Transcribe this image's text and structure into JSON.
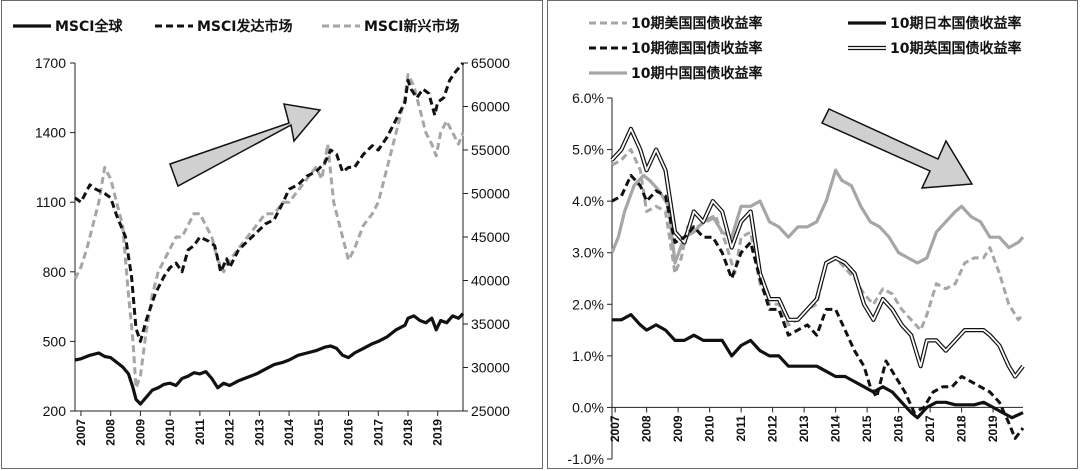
{
  "chart_data": [
    {
      "type": "line",
      "title": "",
      "xlabel": "",
      "ylabel": "",
      "x_ticks": [
        "2007",
        "2008",
        "2009",
        "2010",
        "2011",
        "2012",
        "2013",
        "2014",
        "2015",
        "2016",
        "2017",
        "2018",
        "2019"
      ],
      "x_range": [
        2006.8,
        2019.85
      ],
      "y_left_ticks": [
        "200",
        "500",
        "800",
        "1100",
        "1400",
        "1700"
      ],
      "y_left_range": [
        200,
        1700
      ],
      "y_right_ticks": [
        "25000",
        "30000",
        "35000",
        "40000",
        "45000",
        "50000",
        "55000",
        "60000",
        "65000"
      ],
      "y_right_range": [
        25000,
        65000
      ],
      "grid": false,
      "legend_position": "top",
      "arrow": "up-right",
      "series": [
        {
          "name": "MSCI全球",
          "axis": "left",
          "style": "solid-black",
          "x": [
            2006.8,
            2007.0,
            2007.3,
            2007.6,
            2007.8,
            2008.0,
            2008.2,
            2008.4,
            2008.6,
            2008.75,
            2008.85,
            2009.0,
            2009.2,
            2009.4,
            2009.6,
            2009.8,
            2010.0,
            2010.2,
            2010.4,
            2010.6,
            2010.8,
            2011.0,
            2011.2,
            2011.4,
            2011.6,
            2011.8,
            2012.0,
            2012.3,
            2012.6,
            2012.9,
            2013.2,
            2013.5,
            2013.8,
            2014.0,
            2014.3,
            2014.6,
            2014.9,
            2015.2,
            2015.4,
            2015.6,
            2015.8,
            2016.0,
            2016.2,
            2016.5,
            2016.8,
            2017.0,
            2017.3,
            2017.6,
            2017.9,
            2018.0,
            2018.2,
            2018.4,
            2018.6,
            2018.8,
            2018.95,
            2019.1,
            2019.3,
            2019.5,
            2019.7,
            2019.85
          ],
          "y": [
            420,
            425,
            440,
            450,
            435,
            430,
            410,
            390,
            360,
            300,
            250,
            230,
            260,
            290,
            300,
            315,
            320,
            310,
            340,
            350,
            365,
            360,
            370,
            340,
            300,
            320,
            310,
            330,
            345,
            360,
            380,
            400,
            410,
            420,
            440,
            450,
            460,
            475,
            480,
            470,
            440,
            430,
            450,
            470,
            490,
            500,
            520,
            550,
            570,
            600,
            610,
            590,
            580,
            600,
            550,
            590,
            580,
            610,
            600,
            620
          ]
        },
        {
          "name": "MSCI发达市场",
          "axis": "right",
          "style": "dashed-black",
          "x": [
            2006.8,
            2007.0,
            2007.3,
            2007.5,
            2007.8,
            2008.0,
            2008.2,
            2008.5,
            2008.7,
            2008.85,
            2009.0,
            2009.2,
            2009.5,
            2009.8,
            2010.0,
            2010.2,
            2010.4,
            2010.6,
            2010.8,
            2011.0,
            2011.3,
            2011.5,
            2011.7,
            2011.9,
            2012.0,
            2012.3,
            2012.6,
            2012.9,
            2013.2,
            2013.5,
            2013.8,
            2014.0,
            2014.3,
            2014.6,
            2014.9,
            2015.2,
            2015.4,
            2015.6,
            2015.8,
            2016.0,
            2016.2,
            2016.5,
            2016.8,
            2017.0,
            2017.3,
            2017.6,
            2017.9,
            2018.0,
            2018.1,
            2018.3,
            2018.5,
            2018.7,
            2018.9,
            2019.0,
            2019.2,
            2019.4,
            2019.6,
            2019.85
          ],
          "y": [
            49500,
            49000,
            51000,
            50500,
            50000,
            49500,
            47500,
            45000,
            40500,
            34500,
            33000,
            35500,
            38500,
            40500,
            41500,
            42000,
            41000,
            43500,
            44000,
            45000,
            44500,
            44000,
            41000,
            42500,
            41500,
            43500,
            44500,
            45500,
            46500,
            47000,
            49000,
            50500,
            51000,
            52000,
            52500,
            53500,
            55000,
            54500,
            52500,
            53000,
            53000,
            54500,
            55500,
            55000,
            56500,
            58500,
            60500,
            63000,
            62000,
            61000,
            62000,
            61500,
            59000,
            60500,
            61000,
            63000,
            64000,
            65000
          ]
        },
        {
          "name": "MSCI新兴市场",
          "axis": "left",
          "style": "dashed-gray",
          "x": [
            2006.8,
            2007.0,
            2007.2,
            2007.4,
            2007.6,
            2007.8,
            2008.0,
            2008.2,
            2008.4,
            2008.6,
            2008.75,
            2008.85,
            2009.0,
            2009.2,
            2009.4,
            2009.6,
            2009.8,
            2010.0,
            2010.2,
            2010.4,
            2010.6,
            2010.8,
            2011.0,
            2011.2,
            2011.4,
            2011.6,
            2011.8,
            2012.0,
            2012.3,
            2012.6,
            2012.9,
            2013.2,
            2013.5,
            2013.8,
            2014.0,
            2014.3,
            2014.6,
            2014.9,
            2015.1,
            2015.3,
            2015.5,
            2015.7,
            2015.9,
            2016.0,
            2016.2,
            2016.5,
            2016.8,
            2017.0,
            2017.3,
            2017.6,
            2017.9,
            2018.0,
            2018.2,
            2018.4,
            2018.6,
            2018.8,
            2018.95,
            2019.1,
            2019.3,
            2019.5,
            2019.7,
            2019.85
          ],
          "y": [
            770,
            820,
            900,
            1000,
            1100,
            1250,
            1200,
            1100,
            1000,
            700,
            500,
            300,
            350,
            550,
            700,
            800,
            850,
            900,
            950,
            950,
            1000,
            1050,
            1050,
            1000,
            950,
            850,
            800,
            850,
            900,
            950,
            1000,
            1050,
            1050,
            1100,
            1100,
            1150,
            1200,
            1250,
            1200,
            1350,
            1100,
            1000,
            900,
            850,
            900,
            1000,
            1050,
            1100,
            1250,
            1400,
            1550,
            1650,
            1600,
            1500,
            1400,
            1350,
            1300,
            1400,
            1450,
            1400,
            1350,
            1400
          ]
        }
      ]
    },
    {
      "type": "line",
      "title": "",
      "xlabel": "",
      "ylabel": "",
      "x_ticks": [
        "2007",
        "2008",
        "2009",
        "2010",
        "2011",
        "2012",
        "2013",
        "2014",
        "2015",
        "2016",
        "2017",
        "2018",
        "2019"
      ],
      "x_range": [
        2006.9,
        2019.95
      ],
      "y_ticks": [
        "-1.0%",
        "0.0%",
        "1.0%",
        "2.0%",
        "3.0%",
        "4.0%",
        "5.0%",
        "6.0%"
      ],
      "y_range": [
        -1.0,
        6.0
      ],
      "y_unit": "%",
      "grid": false,
      "legend_position": "top",
      "arrow": "down-right",
      "series": [
        {
          "name": "10期美国国债收益率",
          "style": "dashed-gray",
          "x": [
            2006.9,
            2007.2,
            2007.5,
            2007.8,
            2008.0,
            2008.3,
            2008.6,
            2008.9,
            2009.1,
            2009.3,
            2009.6,
            2009.9,
            2010.2,
            2010.5,
            2010.8,
            2011.0,
            2011.3,
            2011.6,
            2011.9,
            2012.2,
            2012.5,
            2012.8,
            2013.1,
            2013.4,
            2013.7,
            2014.0,
            2014.3,
            2014.6,
            2014.9,
            2015.2,
            2015.5,
            2015.8,
            2016.1,
            2016.4,
            2016.7,
            2016.9,
            2017.2,
            2017.5,
            2017.8,
            2018.1,
            2018.4,
            2018.7,
            2018.9,
            2019.2,
            2019.5,
            2019.8,
            2019.95
          ],
          "y": [
            4.7,
            4.8,
            5.0,
            4.6,
            3.8,
            3.9,
            3.8,
            2.6,
            2.9,
            3.5,
            3.5,
            3.6,
            3.7,
            3.2,
            2.6,
            3.3,
            3.4,
            2.4,
            2.0,
            2.0,
            1.6,
            1.7,
            1.9,
            2.0,
            2.8,
            2.9,
            2.7,
            2.5,
            2.2,
            2.0,
            2.3,
            2.2,
            1.9,
            1.7,
            1.5,
            1.8,
            2.4,
            2.3,
            2.4,
            2.8,
            2.9,
            2.9,
            3.1,
            2.6,
            2.0,
            1.7,
            1.8
          ]
        },
        {
          "name": "10期日本国债收益率",
          "style": "solid-black",
          "x": [
            2006.9,
            2007.2,
            2007.5,
            2007.8,
            2008.0,
            2008.3,
            2008.6,
            2008.9,
            2009.2,
            2009.5,
            2009.8,
            2010.1,
            2010.4,
            2010.7,
            2011.0,
            2011.3,
            2011.6,
            2011.9,
            2012.2,
            2012.5,
            2012.8,
            2013.1,
            2013.4,
            2013.7,
            2014.0,
            2014.3,
            2014.6,
            2014.9,
            2015.2,
            2015.5,
            2015.8,
            2016.1,
            2016.4,
            2016.6,
            2016.9,
            2017.2,
            2017.5,
            2017.8,
            2018.1,
            2018.4,
            2018.7,
            2019.0,
            2019.3,
            2019.6,
            2019.95
          ],
          "y": [
            1.7,
            1.7,
            1.8,
            1.6,
            1.5,
            1.6,
            1.5,
            1.3,
            1.3,
            1.4,
            1.3,
            1.3,
            1.3,
            1.0,
            1.2,
            1.3,
            1.1,
            1.0,
            1.0,
            0.8,
            0.8,
            0.8,
            0.8,
            0.7,
            0.6,
            0.6,
            0.5,
            0.4,
            0.3,
            0.4,
            0.3,
            0.1,
            -0.1,
            -0.2,
            0.0,
            0.1,
            0.1,
            0.05,
            0.05,
            0.05,
            0.1,
            0.0,
            -0.1,
            -0.2,
            -0.1
          ]
        },
        {
          "name": "10期德国国债收益率",
          "style": "dashed-black",
          "x": [
            2006.9,
            2007.2,
            2007.5,
            2007.8,
            2008.0,
            2008.3,
            2008.6,
            2008.9,
            2009.2,
            2009.5,
            2009.8,
            2010.1,
            2010.4,
            2010.7,
            2011.0,
            2011.3,
            2011.6,
            2011.9,
            2012.2,
            2012.5,
            2012.8,
            2013.1,
            2013.4,
            2013.7,
            2014.0,
            2014.3,
            2014.6,
            2014.9,
            2015.1,
            2015.3,
            2015.6,
            2015.9,
            2016.2,
            2016.5,
            2016.8,
            2017.1,
            2017.4,
            2017.7,
            2018.0,
            2018.3,
            2018.6,
            2018.9,
            2019.2,
            2019.5,
            2019.7,
            2019.95
          ],
          "y": [
            4.0,
            4.1,
            4.5,
            4.3,
            4.0,
            4.2,
            4.1,
            3.2,
            3.3,
            3.5,
            3.3,
            3.3,
            3.0,
            2.5,
            3.0,
            3.2,
            2.5,
            1.9,
            1.9,
            1.4,
            1.5,
            1.6,
            1.4,
            1.9,
            1.9,
            1.5,
            1.1,
            0.8,
            0.4,
            0.2,
            0.9,
            0.6,
            0.3,
            -0.1,
            0.0,
            0.3,
            0.4,
            0.4,
            0.6,
            0.5,
            0.4,
            0.3,
            0.1,
            -0.3,
            -0.6,
            -0.4
          ]
        },
        {
          "name": "10期英国国债收益率",
          "style": "double",
          "x": [
            2006.9,
            2007.2,
            2007.5,
            2007.8,
            2008.0,
            2008.3,
            2008.6,
            2008.9,
            2009.2,
            2009.5,
            2009.8,
            2010.1,
            2010.4,
            2010.7,
            2011.0,
            2011.3,
            2011.6,
            2011.9,
            2012.2,
            2012.5,
            2012.8,
            2013.1,
            2013.4,
            2013.7,
            2014.0,
            2014.3,
            2014.6,
            2014.9,
            2015.2,
            2015.5,
            2015.8,
            2016.1,
            2016.4,
            2016.7,
            2016.9,
            2017.2,
            2017.5,
            2017.8,
            2018.1,
            2018.4,
            2018.7,
            2018.9,
            2019.2,
            2019.5,
            2019.7,
            2019.95
          ],
          "y": [
            4.8,
            5.0,
            5.4,
            5.0,
            4.6,
            5.0,
            4.6,
            3.4,
            3.2,
            3.8,
            3.6,
            4.0,
            3.8,
            3.1,
            3.6,
            3.8,
            2.6,
            2.1,
            2.1,
            1.7,
            1.7,
            1.9,
            2.1,
            2.8,
            2.9,
            2.8,
            2.6,
            2.0,
            1.7,
            2.1,
            1.9,
            1.6,
            1.4,
            0.8,
            1.3,
            1.3,
            1.1,
            1.3,
            1.5,
            1.5,
            1.5,
            1.4,
            1.2,
            0.8,
            0.6,
            0.8
          ]
        },
        {
          "name": "10期中国国债收益率",
          "style": "solid-gray",
          "x": [
            2006.9,
            2007.1,
            2007.3,
            2007.6,
            2007.9,
            2008.1,
            2008.4,
            2008.7,
            2008.9,
            2009.2,
            2009.5,
            2009.8,
            2010.1,
            2010.4,
            2010.7,
            2011.0,
            2011.3,
            2011.6,
            2011.9,
            2012.2,
            2012.5,
            2012.8,
            2013.1,
            2013.4,
            2013.7,
            2014.0,
            2014.2,
            2014.5,
            2014.8,
            2015.1,
            2015.4,
            2015.7,
            2016.0,
            2016.3,
            2016.6,
            2016.9,
            2017.2,
            2017.5,
            2017.8,
            2018.0,
            2018.3,
            2018.6,
            2018.9,
            2019.2,
            2019.5,
            2019.8,
            2019.95
          ],
          "y": [
            3.0,
            3.3,
            3.8,
            4.3,
            4.5,
            4.4,
            4.2,
            3.9,
            2.8,
            3.3,
            3.4,
            3.6,
            3.7,
            3.4,
            3.3,
            3.9,
            3.9,
            4.0,
            3.6,
            3.5,
            3.3,
            3.5,
            3.5,
            3.6,
            4.0,
            4.6,
            4.4,
            4.3,
            3.9,
            3.6,
            3.5,
            3.3,
            3.0,
            2.9,
            2.8,
            2.9,
            3.4,
            3.6,
            3.8,
            3.9,
            3.7,
            3.6,
            3.3,
            3.3,
            3.1,
            3.2,
            3.3
          ]
        }
      ]
    }
  ],
  "colors": {
    "black": "#111111",
    "gray": "#a6a6a6",
    "arrow_fill": "#d0d0d0",
    "arrow_stroke": "#111111"
  }
}
